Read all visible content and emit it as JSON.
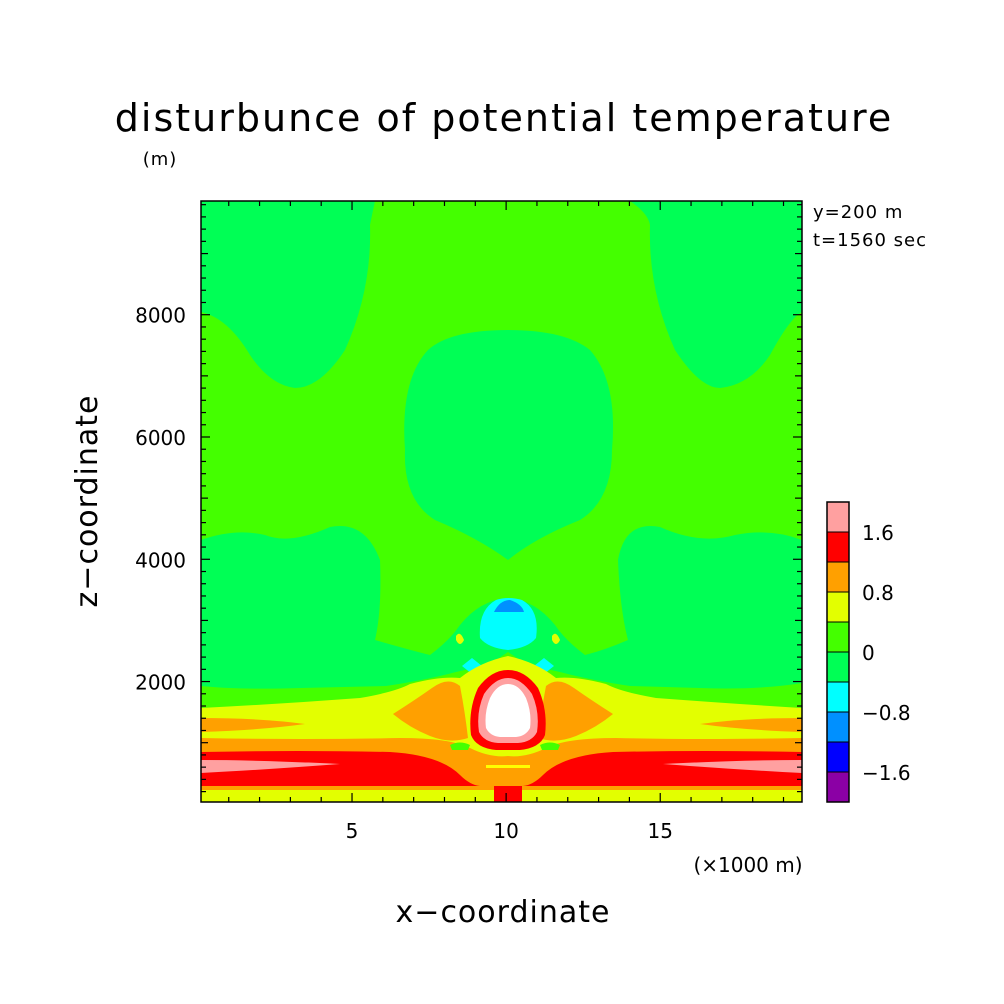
{
  "chart_data": {
    "type": "heatmap",
    "title": "disturbunce of potential temperature",
    "ylabel_unit": "(m)",
    "xlabel": "x−coordinate",
    "ylabel": "z−coordinate",
    "x_unit_note": "(×1000 m)",
    "annotations": [
      "y=200 m",
      "t=1560 sec"
    ],
    "xlim": [
      0.1,
      19.6
    ],
    "ylim": [
      30,
      9860
    ],
    "x_ticks": [
      5,
      10,
      15
    ],
    "y_ticks": [
      2000,
      4000,
      6000,
      8000
    ],
    "grid": false,
    "legend_position": "right",
    "colorbar": {
      "levels": [
        -2.0,
        -1.6,
        -1.2,
        -0.8,
        -0.4,
        0,
        0.4,
        0.8,
        1.2,
        1.6,
        2.0
      ],
      "labels": [
        "-1.6",
        "-0.8",
        "0",
        "0.8",
        "1.6"
      ],
      "label_values": [
        -1.6,
        -0.8,
        0,
        0.8,
        1.6
      ],
      "colors": [
        "#8b00a5",
        "#0000ff",
        "#0090ff",
        "#00ffff",
        "#00ff55",
        "#44ff00",
        "#e3ff00",
        "#ffa000",
        "#ff0000",
        "#ffa0a0"
      ]
    },
    "regions": [
      {
        "value": 0.2,
        "color": "#44ff00",
        "desc": "background"
      },
      {
        "value": -0.2,
        "color": "#00ff55",
        "desc": "upper-left lobe"
      },
      {
        "value": -0.2,
        "color": "#00ff55",
        "desc": "upper-right lobe"
      },
      {
        "value": -0.2,
        "color": "#00ff55",
        "desc": "central dome"
      },
      {
        "value": -0.2,
        "color": "#00ff55",
        "desc": "middle layer"
      },
      {
        "value": -0.6,
        "color": "#00ffff",
        "desc": "cap above bubble"
      },
      {
        "value": -1.0,
        "color": "#0090ff",
        "desc": "cap core"
      },
      {
        "value": 0.6,
        "color": "#e3ff00",
        "desc": "lower layer"
      },
      {
        "value": 1.0,
        "color": "#ffa000",
        "desc": "near-surface layer"
      },
      {
        "value": 1.4,
        "color": "#ff0000",
        "desc": "surface bands"
      },
      {
        "value": 1.8,
        "color": "#ffa0a0",
        "desc": "surface band cores"
      },
      {
        "value": 2.2,
        "color": "#ffffff",
        "desc": "warm bubble core"
      }
    ]
  }
}
